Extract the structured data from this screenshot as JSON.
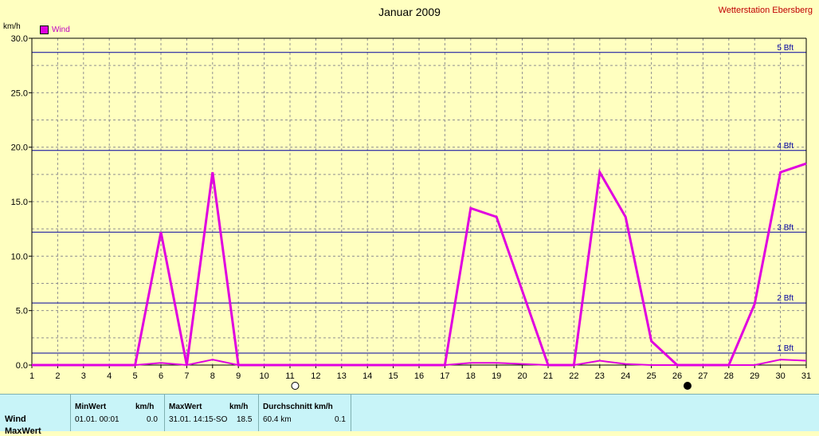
{
  "title": "Januar 2009",
  "station": "Wetterstation Ebersberg",
  "unit_label": "km/h",
  "legend": {
    "label": "Wind",
    "color": "#e000e0"
  },
  "chart_data": {
    "type": "line",
    "title": "Januar 2009",
    "ylabel": "km/h",
    "ylim": [
      0,
      30
    ],
    "y_ticks": [
      "0.0",
      "5.0",
      "10.0",
      "15.0",
      "20.0",
      "25.0",
      "30.0"
    ],
    "x_ticks": [
      "1",
      "2",
      "3",
      "4",
      "5",
      "6",
      "7",
      "8",
      "9",
      "10",
      "11",
      "12",
      "13",
      "14",
      "15",
      "16",
      "17",
      "18",
      "19",
      "20",
      "21",
      "22",
      "23",
      "24",
      "25",
      "26",
      "27",
      "28",
      "29",
      "30",
      "31"
    ],
    "grid": true,
    "series": [
      {
        "name": "Wind",
        "color": "#e000e0",
        "x": [
          1,
          2,
          3,
          4,
          5,
          6,
          7,
          8,
          9,
          10,
          11,
          12,
          13,
          14,
          15,
          16,
          17,
          18,
          19,
          20,
          21,
          22,
          23,
          24,
          25,
          26,
          27,
          28,
          29,
          30,
          31
        ],
        "values": [
          0,
          0,
          0,
          0,
          0,
          12.2,
          0,
          17.7,
          0,
          0,
          0,
          0,
          0,
          0,
          0,
          0,
          0,
          14.4,
          13.6,
          6.8,
          0,
          0,
          17.7,
          13.6,
          2.2,
          0,
          0,
          0,
          5.6,
          17.7,
          18.5
        ]
      },
      {
        "name": "Wind",
        "color": "#e000e0",
        "x": [
          1,
          2,
          3,
          4,
          5,
          6,
          7,
          8,
          9,
          10,
          11,
          12,
          13,
          14,
          15,
          16,
          17,
          18,
          19,
          20,
          21,
          22,
          23,
          24,
          25,
          26,
          27,
          28,
          29,
          30,
          31
        ],
        "values": [
          0,
          0,
          0,
          0,
          0,
          0.2,
          0,
          0.5,
          0,
          0,
          0,
          0,
          0,
          0,
          0,
          0,
          0,
          0.2,
          0.2,
          0.1,
          0,
          0,
          0.4,
          0.1,
          0,
          0,
          0,
          0,
          0,
          0.5,
          0.4
        ]
      }
    ],
    "beaufort_lines": [
      {
        "label": "1 Bft",
        "value": 1.1
      },
      {
        "label": "2 Bft",
        "value": 5.7
      },
      {
        "label": "3 Bft",
        "value": 12.2
      },
      {
        "label": "4 Bft",
        "value": 19.7
      },
      {
        "label": "5 Bft",
        "value": 28.7
      }
    ],
    "moon_phases": [
      {
        "day": 11.2,
        "phase": "full"
      },
      {
        "day": 26.4,
        "phase": "new"
      }
    ]
  },
  "table": {
    "headers": {
      "min": "MinWert",
      "min_unit": "km/h",
      "max": "MaxWert",
      "max_unit": "km/h",
      "avg": "Durchschnitt km/h"
    },
    "row_label": "Wind",
    "row2_label": "MaxWert",
    "min_date": "01.01.  00:01",
    "min_value": "0.0",
    "max_date": "31.01.  14:15-SO",
    "max_value": "18.5",
    "total": "60.4 km",
    "avg_value": "0.1"
  }
}
